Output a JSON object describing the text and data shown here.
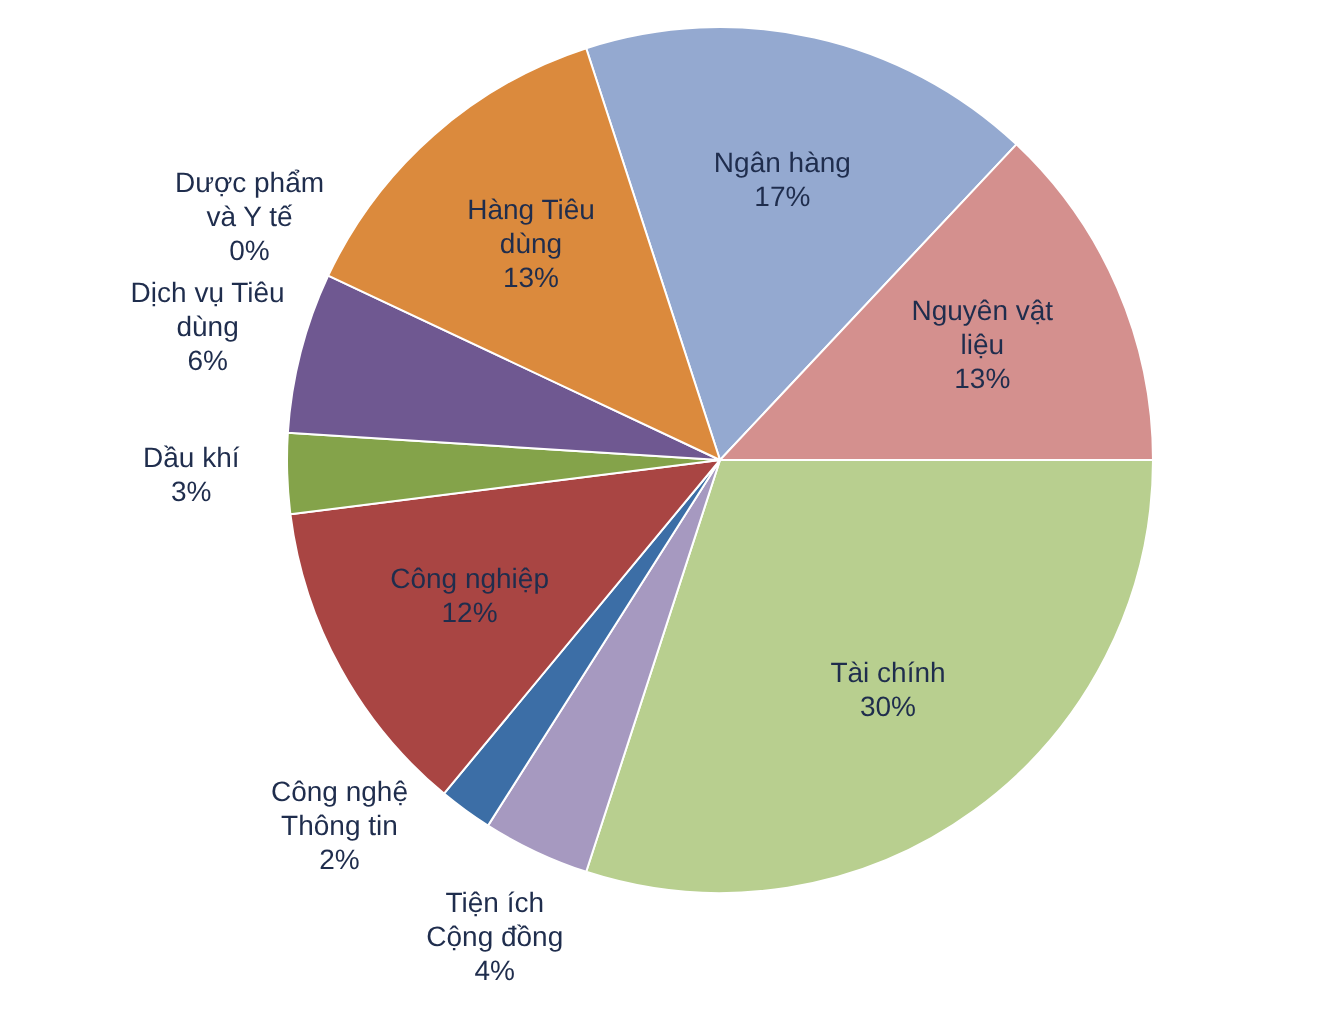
{
  "chart_data": {
    "type": "pie",
    "categories": [
      "Ngân hàng",
      "Nguyên vật liệu",
      "Tài chính",
      "Tiện ích Cộng đồng",
      "Công nghệ Thông tin",
      "Công nghiệp",
      "Dầu khí",
      "Dịch vụ Tiêu dùng",
      "Dược phẩm và Y tế",
      "Hàng Tiêu dùng"
    ],
    "values": [
      17,
      13,
      30,
      4,
      2,
      12,
      3,
      6,
      0,
      13
    ],
    "value_labels": [
      "17%",
      "13%",
      "30%",
      "4%",
      "2%",
      "12%",
      "3%",
      "6%",
      "0%",
      "13%"
    ],
    "colors": [
      "#94a9d0",
      "#d4908e",
      "#b8cf8f",
      "#a699c0",
      "#3c6ea6",
      "#a94543",
      "#84a34a",
      "#6f5891",
      "#3b8dbb",
      "#db8a3d"
    ]
  }
}
